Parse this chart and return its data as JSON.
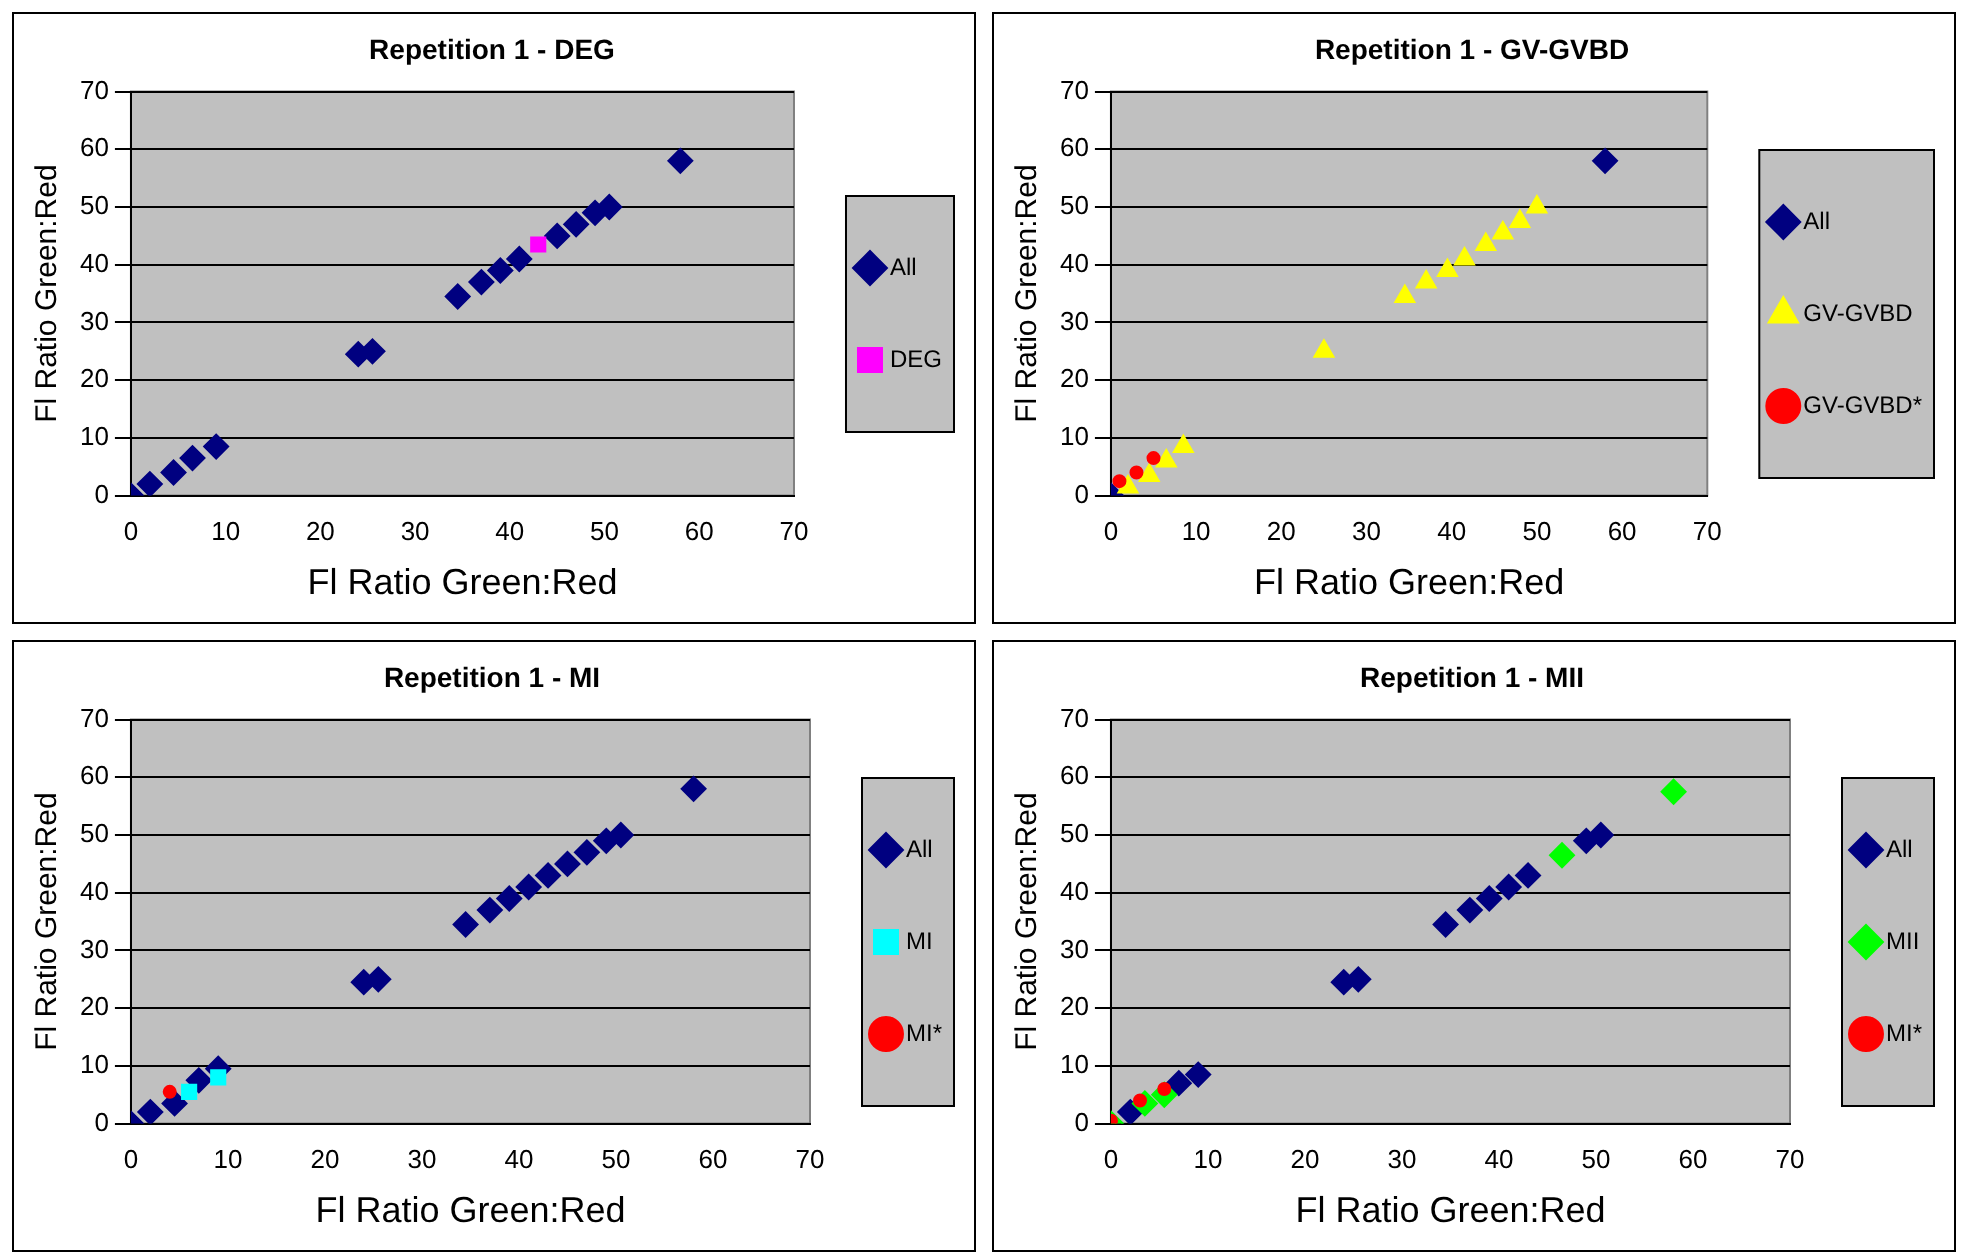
{
  "chart_data": [
    {
      "type": "scatter",
      "title": "Repetition 1 - DEG",
      "xlabel": "Fl Ratio Green:Red",
      "ylabel": "Fl Ratio Green:Red",
      "xlim": [
        0,
        70
      ],
      "xticks": [
        0,
        10,
        20,
        30,
        40,
        50,
        60,
        70
      ],
      "ylim": [
        0,
        70
      ],
      "yticks": [
        0,
        10,
        20,
        30,
        40,
        50,
        60,
        70
      ],
      "grid": "y",
      "legend": "right",
      "series": [
        {
          "name": "All",
          "color": "#000080",
          "marker": "diamond",
          "x": [
            0,
            2,
            4.5,
            6.5,
            9,
            24,
            25.5,
            34.5,
            37,
            39,
            41,
            45,
            47,
            49,
            50.5,
            58
          ],
          "values": [
            0,
            2,
            4,
            6.5,
            8.5,
            24.5,
            25,
            34.5,
            37,
            39,
            41,
            45,
            47,
            49,
            50,
            58
          ]
        },
        {
          "name": "DEG",
          "color": "#ff00ff",
          "marker": "square",
          "x": [
            43
          ],
          "values": [
            43.5
          ]
        }
      ]
    },
    {
      "type": "scatter",
      "title": "Repetition 1 - GV-GVBD",
      "xlabel": "Fl Ratio Green:Red",
      "ylabel": "Fl Ratio Green:Red",
      "xlim": [
        0,
        70
      ],
      "xticks": [
        0,
        10,
        20,
        30,
        40,
        50,
        60,
        70
      ],
      "ylim": [
        0,
        70
      ],
      "yticks": [
        0,
        10,
        20,
        30,
        40,
        50,
        60,
        70
      ],
      "grid": "y",
      "legend": "right",
      "series": [
        {
          "name": "All",
          "color": "#000080",
          "marker": "diamond",
          "x": [
            0,
            58
          ],
          "values": [
            0,
            58
          ]
        },
        {
          "name": "GV-GVBD",
          "color": "#ffff00",
          "marker": "triangle",
          "x": [
            2,
            4.5,
            6.5,
            8.5,
            25,
            34.5,
            37,
            39.5,
            41.5,
            44,
            46,
            48,
            50
          ],
          "values": [
            1.5,
            3.5,
            6,
            8.5,
            25,
            34.5,
            37,
            39,
            41,
            43.5,
            45.5,
            47.5,
            50
          ]
        },
        {
          "name": "GV-GVBD*",
          "color": "#ff0000",
          "marker": "circle",
          "x": [
            1,
            3,
            5
          ],
          "values": [
            2.5,
            4,
            6.5
          ]
        }
      ]
    },
    {
      "type": "scatter",
      "title": "Repetition 1 - MI",
      "xlabel": "Fl Ratio Green:Red",
      "ylabel": "Fl Ratio Green:Red",
      "xlim": [
        0,
        70
      ],
      "xticks": [
        0,
        10,
        20,
        30,
        40,
        50,
        60,
        70
      ],
      "ylim": [
        0,
        70
      ],
      "yticks": [
        0,
        10,
        20,
        30,
        40,
        50,
        60,
        70
      ],
      "grid": "y",
      "legend": "right",
      "series": [
        {
          "name": "All",
          "color": "#000080",
          "marker": "diamond",
          "x": [
            0,
            2,
            4.5,
            7,
            9,
            24,
            25.5,
            34.5,
            37,
            39,
            41,
            43,
            45,
            47,
            49,
            50.5,
            58
          ],
          "values": [
            0,
            2,
            3.5,
            7.5,
            9.5,
            24.5,
            25,
            34.5,
            37,
            39,
            41,
            43,
            45,
            47,
            49,
            50,
            58
          ]
        },
        {
          "name": "MI",
          "color": "#00ffff",
          "marker": "square",
          "x": [
            6,
            9
          ],
          "values": [
            5.5,
            8
          ]
        },
        {
          "name": "MI*",
          "color": "#ff0000",
          "marker": "circle",
          "x": [
            4
          ],
          "values": [
            5.5
          ]
        }
      ]
    },
    {
      "type": "scatter",
      "title": "Repetition 1 - MII",
      "xlabel": "Fl Ratio Green:Red",
      "ylabel": "Fl Ratio Green:Red",
      "xlim": [
        0,
        70
      ],
      "xticks": [
        0,
        10,
        20,
        30,
        40,
        50,
        60,
        70
      ],
      "ylim": [
        0,
        70
      ],
      "yticks": [
        0,
        10,
        20,
        30,
        40,
        50,
        60,
        70
      ],
      "grid": "y",
      "legend": "right",
      "series": [
        {
          "name": "All",
          "color": "#000080",
          "marker": "diamond",
          "x": [
            2,
            7,
            9,
            24,
            25.5,
            34.5,
            37,
            39,
            41,
            43,
            49,
            50.5
          ],
          "values": [
            2,
            7,
            8.5,
            24.5,
            25,
            34.5,
            37,
            39,
            41,
            43,
            49,
            50
          ]
        },
        {
          "name": "MII",
          "color": "#00ff00",
          "marker": "diamond",
          "x": [
            0,
            3.5,
            5.5,
            46.5,
            58
          ],
          "values": [
            0,
            3.5,
            5,
            46.5,
            57.5
          ]
        },
        {
          "name": "MI*",
          "color": "#ff0000",
          "marker": "circle",
          "x": [
            0,
            3,
            5.5
          ],
          "values": [
            0.5,
            4,
            6
          ]
        }
      ]
    }
  ]
}
